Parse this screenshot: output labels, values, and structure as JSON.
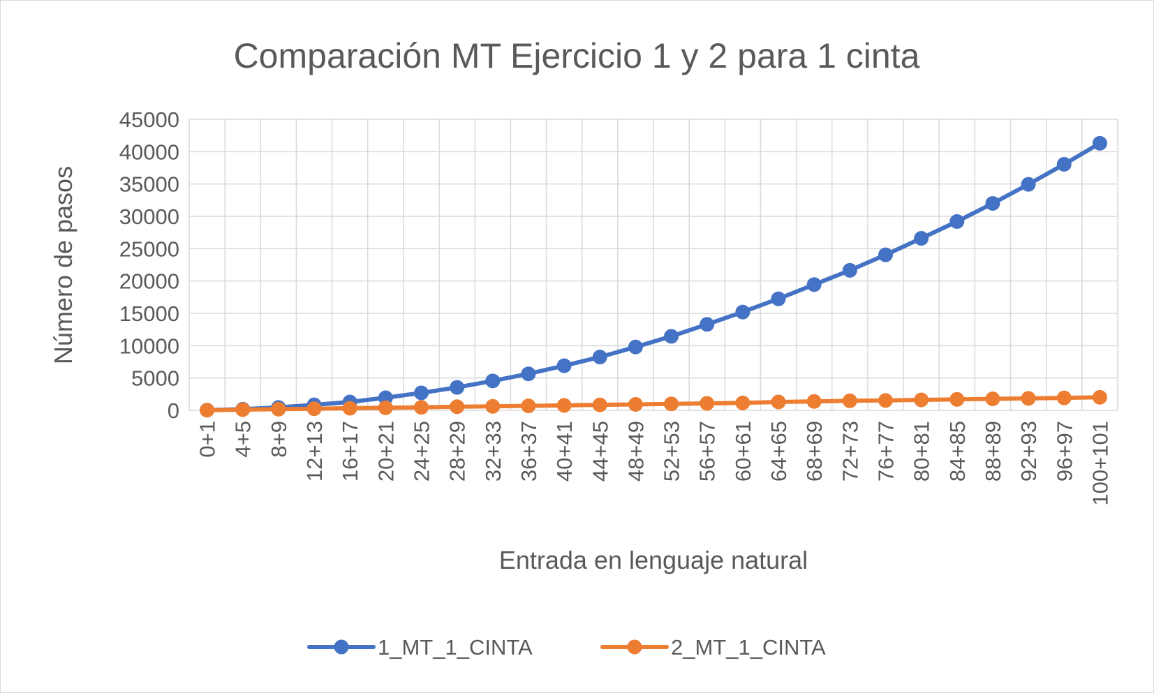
{
  "chart_data": {
    "type": "line",
    "title": "Comparación MT Ejercicio 1 y 2 para 1 cinta",
    "xlabel": "Entrada en lenguaje natural",
    "ylabel": "Número de pasos",
    "ylim": [
      0,
      45000
    ],
    "yticks": [
      0,
      5000,
      10000,
      15000,
      20000,
      25000,
      30000,
      35000,
      40000,
      45000
    ],
    "grid": true,
    "legend_position": "bottom",
    "categories": [
      "0+1",
      "4+5",
      "8+9",
      "12+13",
      "16+17",
      "20+21",
      "24+25",
      "28+29",
      "32+33",
      "36+37",
      "40+41",
      "44+45",
      "48+49",
      "52+53",
      "56+57",
      "60+61",
      "64+65",
      "68+69",
      "72+73",
      "76+77",
      "80+81",
      "84+85",
      "88+89",
      "92+93",
      "96+97",
      "100+101"
    ],
    "series": [
      {
        "name": "1_MT_1_CINTA",
        "color": "#4472C4",
        "values": [
          40,
          180,
          450,
          850,
          1300,
          1950,
          2700,
          3550,
          4550,
          5650,
          6900,
          8250,
          9800,
          11450,
          13300,
          15200,
          17250,
          19450,
          21650,
          24050,
          26600,
          29200,
          32000,
          34950,
          38050,
          41300
        ]
      },
      {
        "name": "2_MT_1_CINTA",
        "color": "#ED7D31",
        "values": [
          30,
          110,
          180,
          250,
          330,
          400,
          470,
          560,
          620,
          700,
          770,
          850,
          920,
          1000,
          1080,
          1150,
          1300,
          1380,
          1480,
          1530,
          1620,
          1700,
          1780,
          1850,
          1930,
          2020
        ]
      }
    ]
  }
}
